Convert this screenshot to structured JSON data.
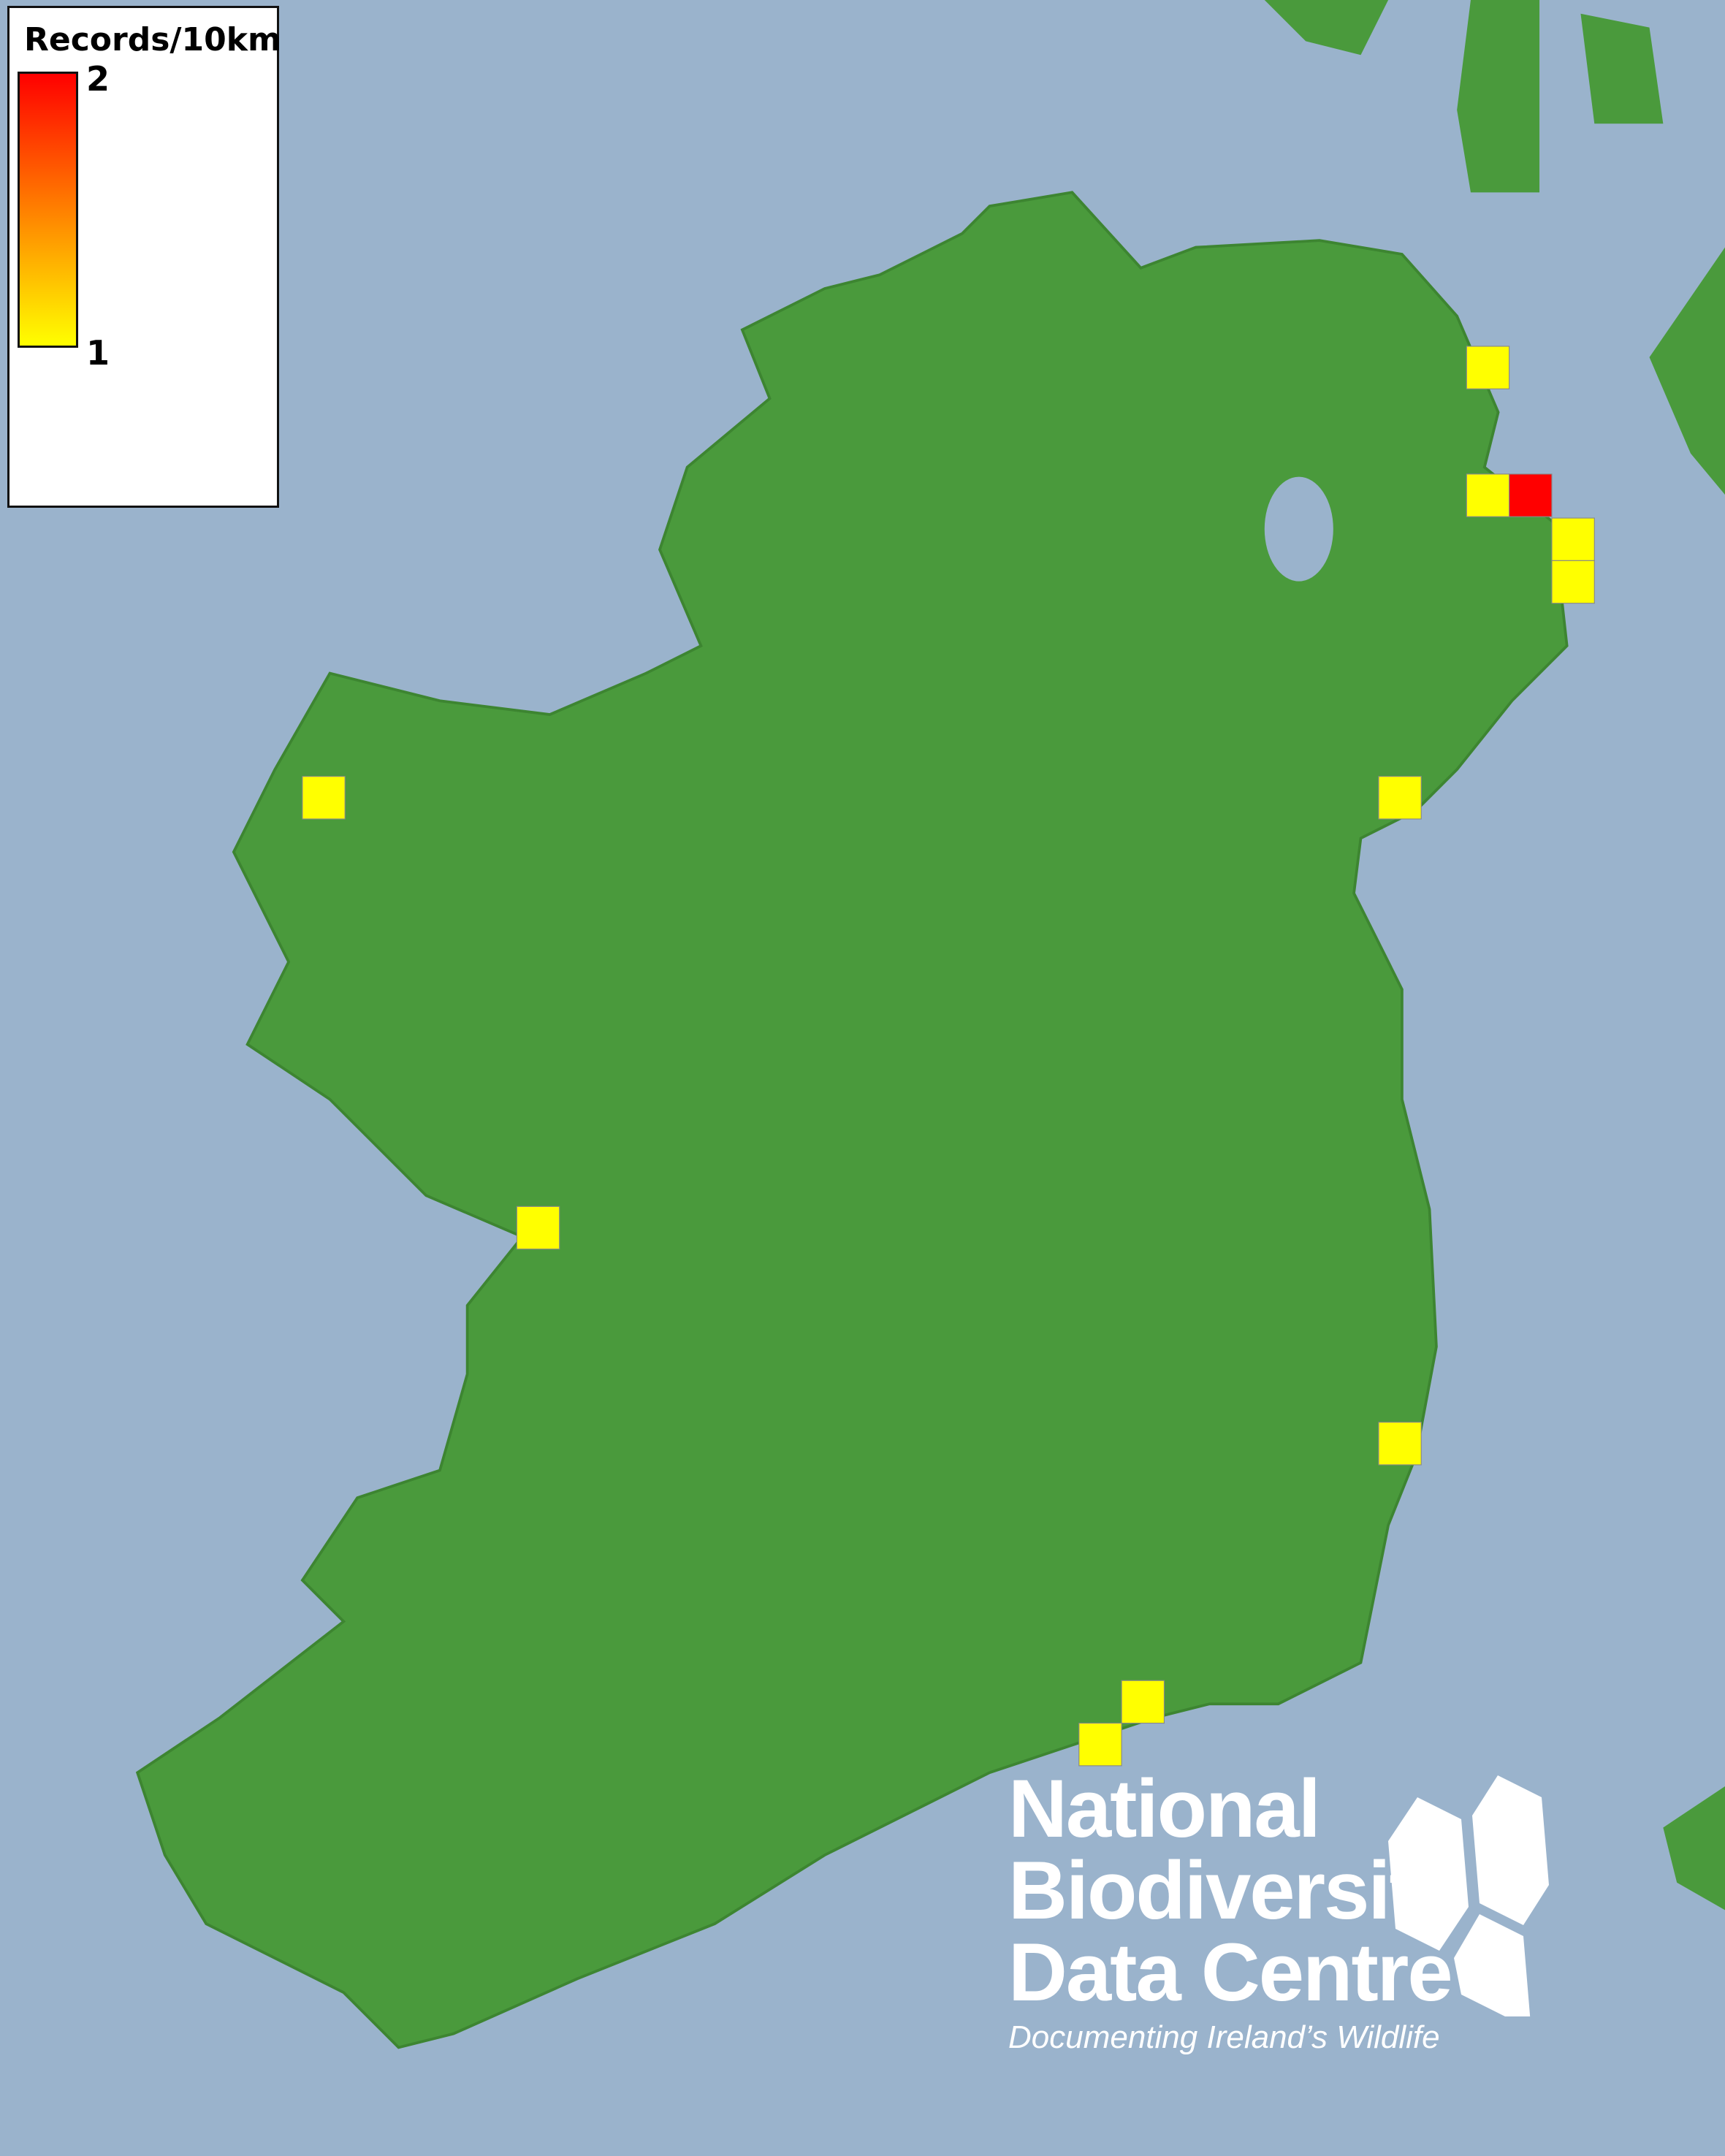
{
  "legend": {
    "title": "Records/10km",
    "max_label": "2",
    "min_label": "1",
    "colors": {
      "min": "#ffff00",
      "max": "#ff0000"
    }
  },
  "map": {
    "sea_color": "#9ab3cc",
    "land_color": "#4a9a3c"
  },
  "squares": [
    {
      "count": 1
    },
    {
      "count": 1
    },
    {
      "count": 2
    },
    {
      "count": 1
    },
    {
      "count": 1
    },
    {
      "count": 1
    },
    {
      "count": 1
    },
    {
      "count": 1
    },
    {
      "count": 1
    },
    {
      "count": 1
    },
    {
      "count": 1
    }
  ],
  "logo": {
    "line1": "National",
    "line2": "Biodiversity",
    "line3": "Data Centre",
    "tagline": "Documenting Ireland’s Wildlife"
  }
}
